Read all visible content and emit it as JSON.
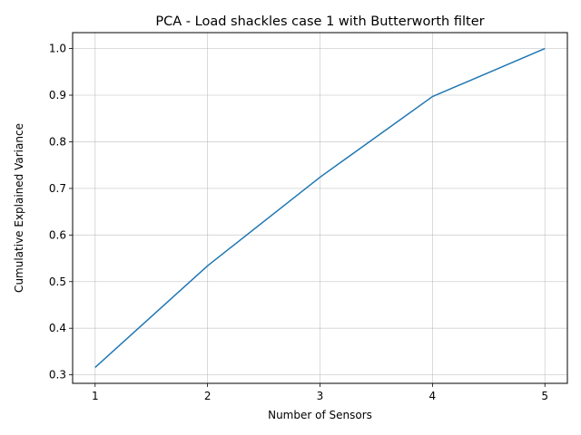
{
  "chart_data": {
    "type": "line",
    "title": "PCA - Load shackles case 1 with Butterworth filter",
    "xlabel": "Number of Sensors",
    "ylabel": "Cumulative Explained Variance",
    "x": [
      1,
      2,
      3,
      4,
      5
    ],
    "series": [
      {
        "values": [
          0.316,
          0.534,
          0.724,
          0.897,
          1.0
        ]
      }
    ],
    "xlim": [
      0.8,
      5.2
    ],
    "ylim": [
      0.2818,
      1.0342
    ],
    "xticks": [
      "1",
      "2",
      "3",
      "4",
      "5"
    ],
    "yticks": [
      "0.3",
      "0.4",
      "0.5",
      "0.6",
      "0.7",
      "0.8",
      "0.9",
      "1.0"
    ],
    "grid": true,
    "legend": "none",
    "line_color": "#1f77b4",
    "grid_color": "#b0b0b0"
  }
}
